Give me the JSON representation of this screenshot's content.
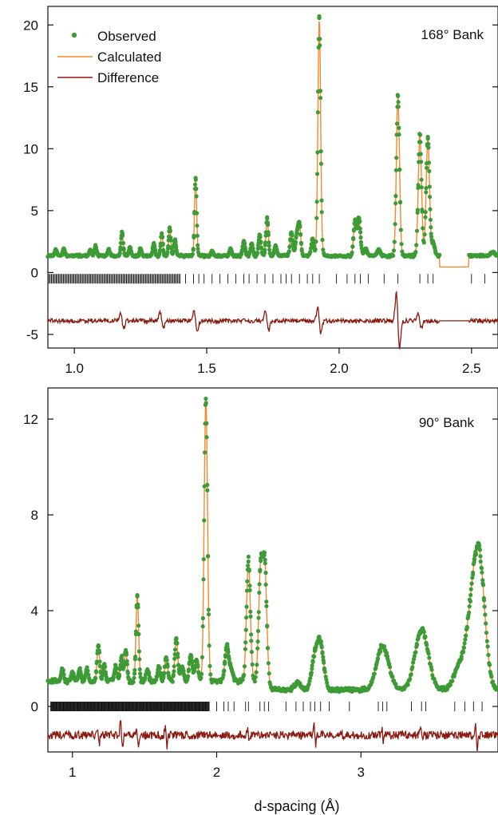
{
  "colors": {
    "observed": "#3d9b35",
    "calculated": "#f28a2e",
    "difference": "#8b1a10",
    "ticks": "#111111"
  },
  "chart_data": [
    {
      "type": "scatter",
      "bank_label": "168° Bank",
      "xlabel": "",
      "ylabel": "",
      "xlim": [
        0.9,
        2.6
      ],
      "ylim": [
        -6.1,
        21.5
      ],
      "xticks": [
        1.0,
        1.5,
        2.0,
        2.5
      ],
      "xtick_labels": [
        "1.0",
        "1.5",
        "2.0",
        "2.5"
      ],
      "yticks": [
        -5,
        0,
        5,
        10,
        15,
        20
      ],
      "ytick_labels": [
        "-5",
        "0",
        "5",
        "10",
        "15",
        "20"
      ],
      "legend": {
        "placement": "top-left",
        "entries": [
          {
            "name": "Observed",
            "style": "markers",
            "color": "#3d9b35"
          },
          {
            "name": "Calculated",
            "style": "line",
            "color": "#f28a2e"
          },
          {
            "name": "Difference",
            "style": "line",
            "color": "#8b1a10"
          }
        ]
      },
      "background_level": 1.35,
      "difference_offset": -3.9,
      "reflection_marker_level": -0.5,
      "gap_regions": [
        [
          2.38,
          2.49
        ]
      ],
      "peaks": [
        {
          "d": 0.93,
          "height": 0.5,
          "width": 0.004
        },
        {
          "d": 0.96,
          "height": 0.6,
          "width": 0.004
        },
        {
          "d": 1.06,
          "height": 0.5,
          "width": 0.004
        },
        {
          "d": 1.08,
          "height": 0.8,
          "width": 0.004
        },
        {
          "d": 1.13,
          "height": 0.5,
          "width": 0.004
        },
        {
          "d": 1.18,
          "height": 1.9,
          "width": 0.004
        },
        {
          "d": 1.21,
          "height": 0.7,
          "width": 0.004
        },
        {
          "d": 1.25,
          "height": 0.6,
          "width": 0.004
        },
        {
          "d": 1.3,
          "height": 1.0,
          "width": 0.004
        },
        {
          "d": 1.33,
          "height": 1.8,
          "width": 0.004
        },
        {
          "d": 1.36,
          "height": 2.3,
          "width": 0.004
        },
        {
          "d": 1.38,
          "height": 1.3,
          "width": 0.004
        },
        {
          "d": 1.458,
          "height": 6.3,
          "width": 0.004
        },
        {
          "d": 1.52,
          "height": 0.4,
          "width": 0.004
        },
        {
          "d": 1.59,
          "height": 0.6,
          "width": 0.004
        },
        {
          "d": 1.64,
          "height": 1.2,
          "width": 0.004
        },
        {
          "d": 1.67,
          "height": 1.0,
          "width": 0.004
        },
        {
          "d": 1.7,
          "height": 1.7,
          "width": 0.004
        },
        {
          "d": 1.728,
          "height": 3.0,
          "width": 0.004
        },
        {
          "d": 1.76,
          "height": 0.8,
          "width": 0.004
        },
        {
          "d": 1.82,
          "height": 1.9,
          "width": 0.004
        },
        {
          "d": 1.84,
          "height": 1.6,
          "width": 0.004
        },
        {
          "d": 1.85,
          "height": 2.5,
          "width": 0.004
        },
        {
          "d": 1.9,
          "height": 1.4,
          "width": 0.004
        },
        {
          "d": 1.925,
          "height": 19.2,
          "width": 0.004
        },
        {
          "d": 2.06,
          "height": 2.8,
          "width": 0.004
        },
        {
          "d": 2.075,
          "height": 3.0,
          "width": 0.004
        },
        {
          "d": 2.1,
          "height": 0.6,
          "width": 0.004
        },
        {
          "d": 2.15,
          "height": 0.5,
          "width": 0.004
        },
        {
          "d": 2.222,
          "height": 12.9,
          "width": 0.004
        },
        {
          "d": 2.305,
          "height": 9.8,
          "width": 0.004
        },
        {
          "d": 2.335,
          "height": 9.6,
          "width": 0.004
        },
        {
          "d": 2.355,
          "height": 1.0,
          "width": 0.004
        },
        {
          "d": 2.58,
          "height": 0.3,
          "width": 0.004
        }
      ],
      "difference_spikes": [
        {
          "d": 1.18,
          "amplitude": 0.7
        },
        {
          "d": 1.33,
          "amplitude": 0.8
        },
        {
          "d": 1.458,
          "amplitude": 1.0
        },
        {
          "d": 1.728,
          "amplitude": 0.9
        },
        {
          "d": 1.925,
          "amplitude": 1.2
        },
        {
          "d": 2.222,
          "amplitude": 2.6
        },
        {
          "d": 2.305,
          "amplitude": 0.7
        }
      ],
      "dense_reflection_range": [
        0.9,
        1.4
      ],
      "reflection_ticks": [
        1.42,
        1.45,
        1.47,
        1.49,
        1.52,
        1.55,
        1.58,
        1.61,
        1.64,
        1.66,
        1.69,
        1.72,
        1.75,
        1.78,
        1.8,
        1.82,
        1.85,
        1.88,
        1.9,
        1.925,
        1.99,
        2.03,
        2.06,
        2.08,
        2.11,
        2.17,
        2.222,
        2.305,
        2.335,
        2.355,
        2.5,
        2.55,
        2.6
      ]
    },
    {
      "type": "scatter",
      "bank_label": "90° Bank",
      "xlabel": "d-spacing (Å)",
      "ylabel": "",
      "xlim": [
        0.83,
        3.95
      ],
      "ylim": [
        -1.9,
        13.3
      ],
      "xticks": [
        1,
        2,
        3
      ],
      "xtick_labels": [
        "1",
        "2",
        "3"
      ],
      "yticks": [
        0,
        4,
        8,
        12
      ],
      "ytick_labels": [
        "0",
        "4",
        "8",
        "12"
      ],
      "background_level": 1.05,
      "background_level_high_d": 0.7,
      "background_step_d": 2.34,
      "difference_offset": -1.2,
      "reflection_marker_level": 0.0,
      "peaks": [
        {
          "d": 0.93,
          "height": 0.5,
          "width": 0.009
        },
        {
          "d": 1.0,
          "height": 0.4,
          "width": 0.009
        },
        {
          "d": 1.05,
          "height": 0.5,
          "width": 0.009
        },
        {
          "d": 1.1,
          "height": 0.5,
          "width": 0.009
        },
        {
          "d": 1.18,
          "height": 1.5,
          "width": 0.009
        },
        {
          "d": 1.22,
          "height": 0.7,
          "width": 0.009
        },
        {
          "d": 1.3,
          "height": 0.6,
          "width": 0.009
        },
        {
          "d": 1.34,
          "height": 1.0,
          "width": 0.009
        },
        {
          "d": 1.37,
          "height": 1.3,
          "width": 0.009
        },
        {
          "d": 1.45,
          "height": 3.6,
          "width": 0.009
        },
        {
          "d": 1.52,
          "height": 0.5,
          "width": 0.009
        },
        {
          "d": 1.6,
          "height": 0.6,
          "width": 0.009
        },
        {
          "d": 1.65,
          "height": 1.0,
          "width": 0.009
        },
        {
          "d": 1.72,
          "height": 1.8,
          "width": 0.009
        },
        {
          "d": 1.76,
          "height": 0.6,
          "width": 0.009
        },
        {
          "d": 1.82,
          "height": 1.1,
          "width": 0.009
        },
        {
          "d": 1.86,
          "height": 0.9,
          "width": 0.009
        },
        {
          "d": 1.925,
          "height": 11.8,
          "width": 0.009
        },
        {
          "d": 2.07,
          "height": 1.5,
          "width": 0.009
        },
        {
          "d": 2.1,
          "height": 0.5,
          "width": 0.009
        },
        {
          "d": 2.22,
          "height": 5.0,
          "width": 0.009
        },
        {
          "d": 2.305,
          "height": 4.7,
          "width": 0.009
        },
        {
          "d": 2.335,
          "height": 4.6,
          "width": 0.009
        },
        {
          "d": 2.56,
          "height": 0.3,
          "width": 0.012
        },
        {
          "d": 2.68,
          "height": 1.3,
          "width": 0.012
        },
        {
          "d": 2.72,
          "height": 1.8,
          "width": 0.012
        },
        {
          "d": 3.15,
          "height": 1.8,
          "width": 0.02
        },
        {
          "d": 3.42,
          "height": 2.5,
          "width": 0.02
        },
        {
          "d": 3.68,
          "height": 0.9,
          "width": 0.015
        },
        {
          "d": 3.76,
          "height": 2.4,
          "width": 0.015
        },
        {
          "d": 3.82,
          "height": 5.2,
          "width": 0.015
        }
      ],
      "difference_spikes": [
        {
          "d": 1.18,
          "amplitude": 0.4
        },
        {
          "d": 1.34,
          "amplitude": 0.7
        },
        {
          "d": 1.45,
          "amplitude": 0.5
        },
        {
          "d": 1.65,
          "amplitude": 0.5
        },
        {
          "d": 2.22,
          "amplitude": 0.4
        },
        {
          "d": 2.68,
          "amplitude": 0.5
        },
        {
          "d": 3.15,
          "amplitude": 0.3
        },
        {
          "d": 3.42,
          "amplitude": 0.3
        },
        {
          "d": 3.8,
          "amplitude": 0.6
        }
      ],
      "dense_reflection_range": [
        0.85,
        1.95
      ],
      "reflection_ticks": [
        2.0,
        2.05,
        2.08,
        2.12,
        2.2,
        2.22,
        2.3,
        2.33,
        2.36,
        2.48,
        2.55,
        2.6,
        2.65,
        2.68,
        2.72,
        2.78,
        2.92,
        3.12,
        3.15,
        3.18,
        3.35,
        3.42,
        3.45,
        3.65,
        3.72,
        3.78,
        3.84
      ]
    }
  ]
}
